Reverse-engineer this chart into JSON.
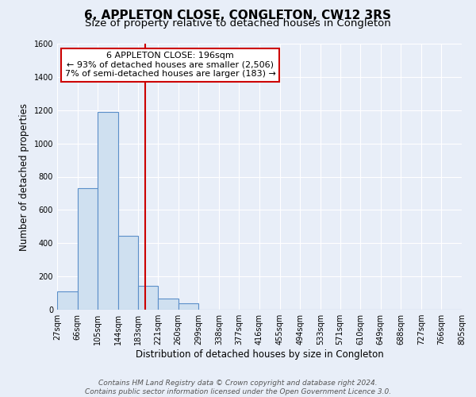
{
  "title": "6, APPLETON CLOSE, CONGLETON, CW12 3RS",
  "subtitle": "Size of property relative to detached houses in Congleton",
  "xlabel": "Distribution of detached houses by size in Congleton",
  "ylabel": "Number of detached properties",
  "bin_labels": [
    "27sqm",
    "66sqm",
    "105sqm",
    "144sqm",
    "183sqm",
    "221sqm",
    "260sqm",
    "299sqm",
    "338sqm",
    "377sqm",
    "416sqm",
    "455sqm",
    "494sqm",
    "533sqm",
    "571sqm",
    "610sqm",
    "649sqm",
    "688sqm",
    "727sqm",
    "766sqm",
    "805sqm"
  ],
  "bar_heights": [
    110,
    730,
    1190,
    445,
    145,
    65,
    38,
    0,
    0,
    0,
    0,
    0,
    0,
    0,
    0,
    0,
    0,
    0,
    0,
    0
  ],
  "bar_color": "#cfe0f0",
  "bar_edge_color": "#5b8fc9",
  "vline_x": 196,
  "bin_edges": [
    27,
    66,
    105,
    144,
    183,
    221,
    260,
    299,
    338,
    377,
    416,
    455,
    494,
    533,
    571,
    610,
    649,
    688,
    727,
    766,
    805
  ],
  "ylim": [
    0,
    1600
  ],
  "yticks": [
    0,
    200,
    400,
    600,
    800,
    1000,
    1200,
    1400,
    1600
  ],
  "background_color": "#e8eef8",
  "annotation_line1": "6 APPLETON CLOSE: 196sqm",
  "annotation_line2": "← 93% of detached houses are smaller (2,506)",
  "annotation_line3": "7% of semi-detached houses are larger (183) →",
  "footer_line1": "Contains HM Land Registry data © Crown copyright and database right 2024.",
  "footer_line2": "Contains public sector information licensed under the Open Government Licence 3.0.",
  "title_fontsize": 11,
  "subtitle_fontsize": 9.5,
  "label_fontsize": 8.5,
  "tick_fontsize": 7,
  "annotation_fontsize": 8,
  "footer_fontsize": 6.5
}
